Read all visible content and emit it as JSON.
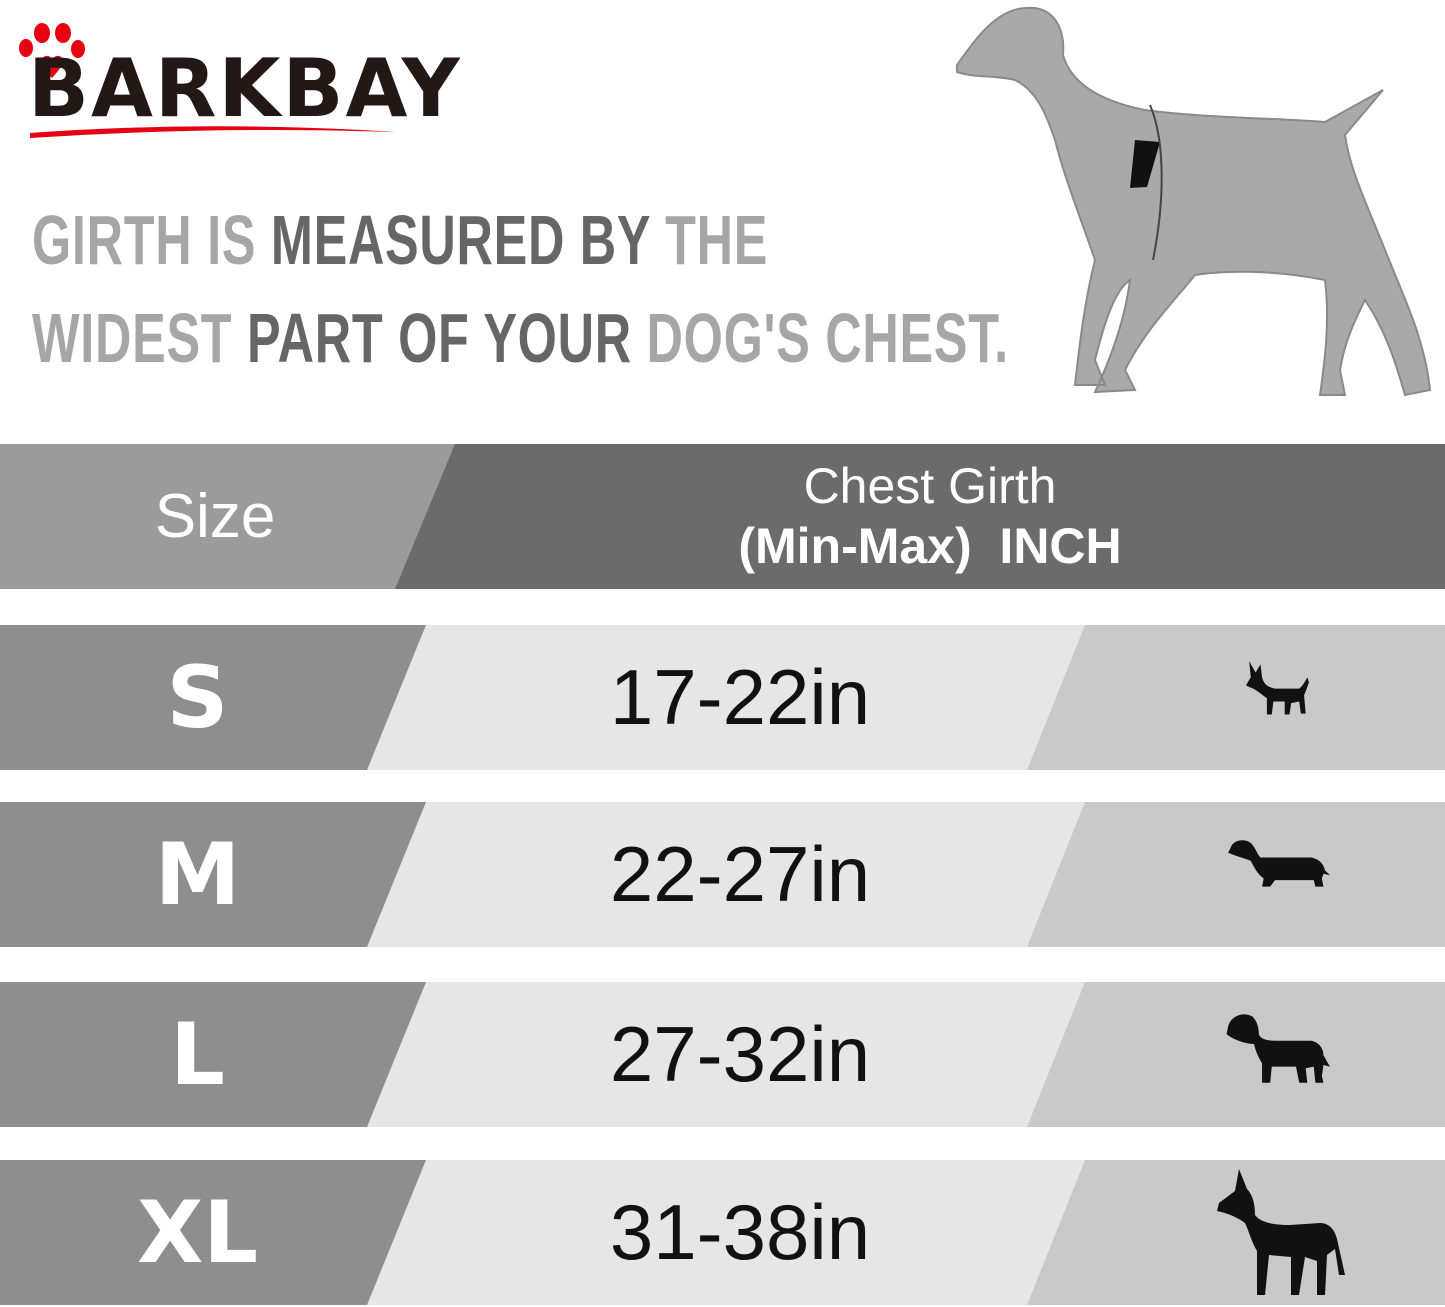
{
  "brand": {
    "name": "BARKBAY",
    "paw_color": "#e60012",
    "text_color": "#231815"
  },
  "headline": {
    "line1": [
      {
        "text": "GIRTH IS",
        "tone": "light"
      },
      {
        "text": " MEASURED BY",
        "tone": "dark"
      },
      {
        "text": " THE",
        "tone": "light"
      }
    ],
    "line2": [
      {
        "text": "WIDEST",
        "tone": "light"
      },
      {
        "text": " PART OF YOUR",
        "tone": "dark"
      },
      {
        "text": " DOG'S CHEST.",
        "tone": "light"
      }
    ]
  },
  "table": {
    "header": {
      "size": "Size",
      "girth_line1": "Chest Girth",
      "girth_line2": "(Min-Max)  INCH"
    },
    "rows": [
      {
        "size": "S",
        "girth": "17-22in",
        "icon": "chihuahua-icon"
      },
      {
        "size": "M",
        "girth": "22-27in",
        "icon": "dachshund-icon"
      },
      {
        "size": "L",
        "girth": "27-32in",
        "icon": "labrador-icon"
      },
      {
        "size": "XL",
        "girth": "31-38in",
        "icon": "great-dane-icon"
      }
    ]
  },
  "colors": {
    "header_left": "#9b9b9b",
    "header_right": "#6b6b6b",
    "row_left": "#8e8e8e",
    "row_mid": "#e6e6e6",
    "row_right": "#c9c9c9"
  }
}
